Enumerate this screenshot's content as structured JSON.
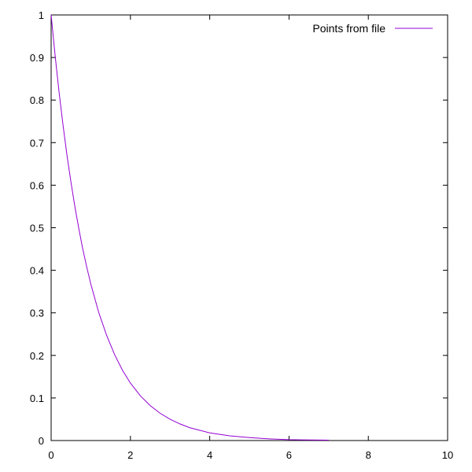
{
  "chart_data": {
    "type": "line",
    "xlim": [
      0,
      10
    ],
    "ylim": [
      0,
      1
    ],
    "x_ticks": [
      0,
      2,
      4,
      6,
      8,
      10
    ],
    "y_ticks": [
      0,
      0.1,
      0.2,
      0.3,
      0.4,
      0.5,
      0.6,
      0.7,
      0.8,
      0.9,
      1
    ],
    "grid": false,
    "legend_position": "top-right",
    "series": [
      {
        "name": "Points from file",
        "color": "#9400d3",
        "x": [
          0,
          0.1,
          0.2,
          0.3,
          0.4,
          0.5,
          0.6,
          0.7,
          0.8,
          0.9,
          1.0,
          1.2,
          1.4,
          1.6,
          1.8,
          2.0,
          2.25,
          2.5,
          2.75,
          3.0,
          3.25,
          3.5,
          3.75,
          4.0,
          4.5,
          5.0,
          5.5,
          6.0,
          6.5,
          7.0
        ],
        "y": [
          1.0,
          0.905,
          0.819,
          0.741,
          0.67,
          0.607,
          0.549,
          0.497,
          0.449,
          0.407,
          0.368,
          0.301,
          0.247,
          0.202,
          0.165,
          0.135,
          0.105,
          0.082,
          0.064,
          0.05,
          0.039,
          0.03,
          0.024,
          0.018,
          0.011,
          0.007,
          0.004,
          0.002,
          0.0015,
          0.001
        ]
      }
    ]
  }
}
